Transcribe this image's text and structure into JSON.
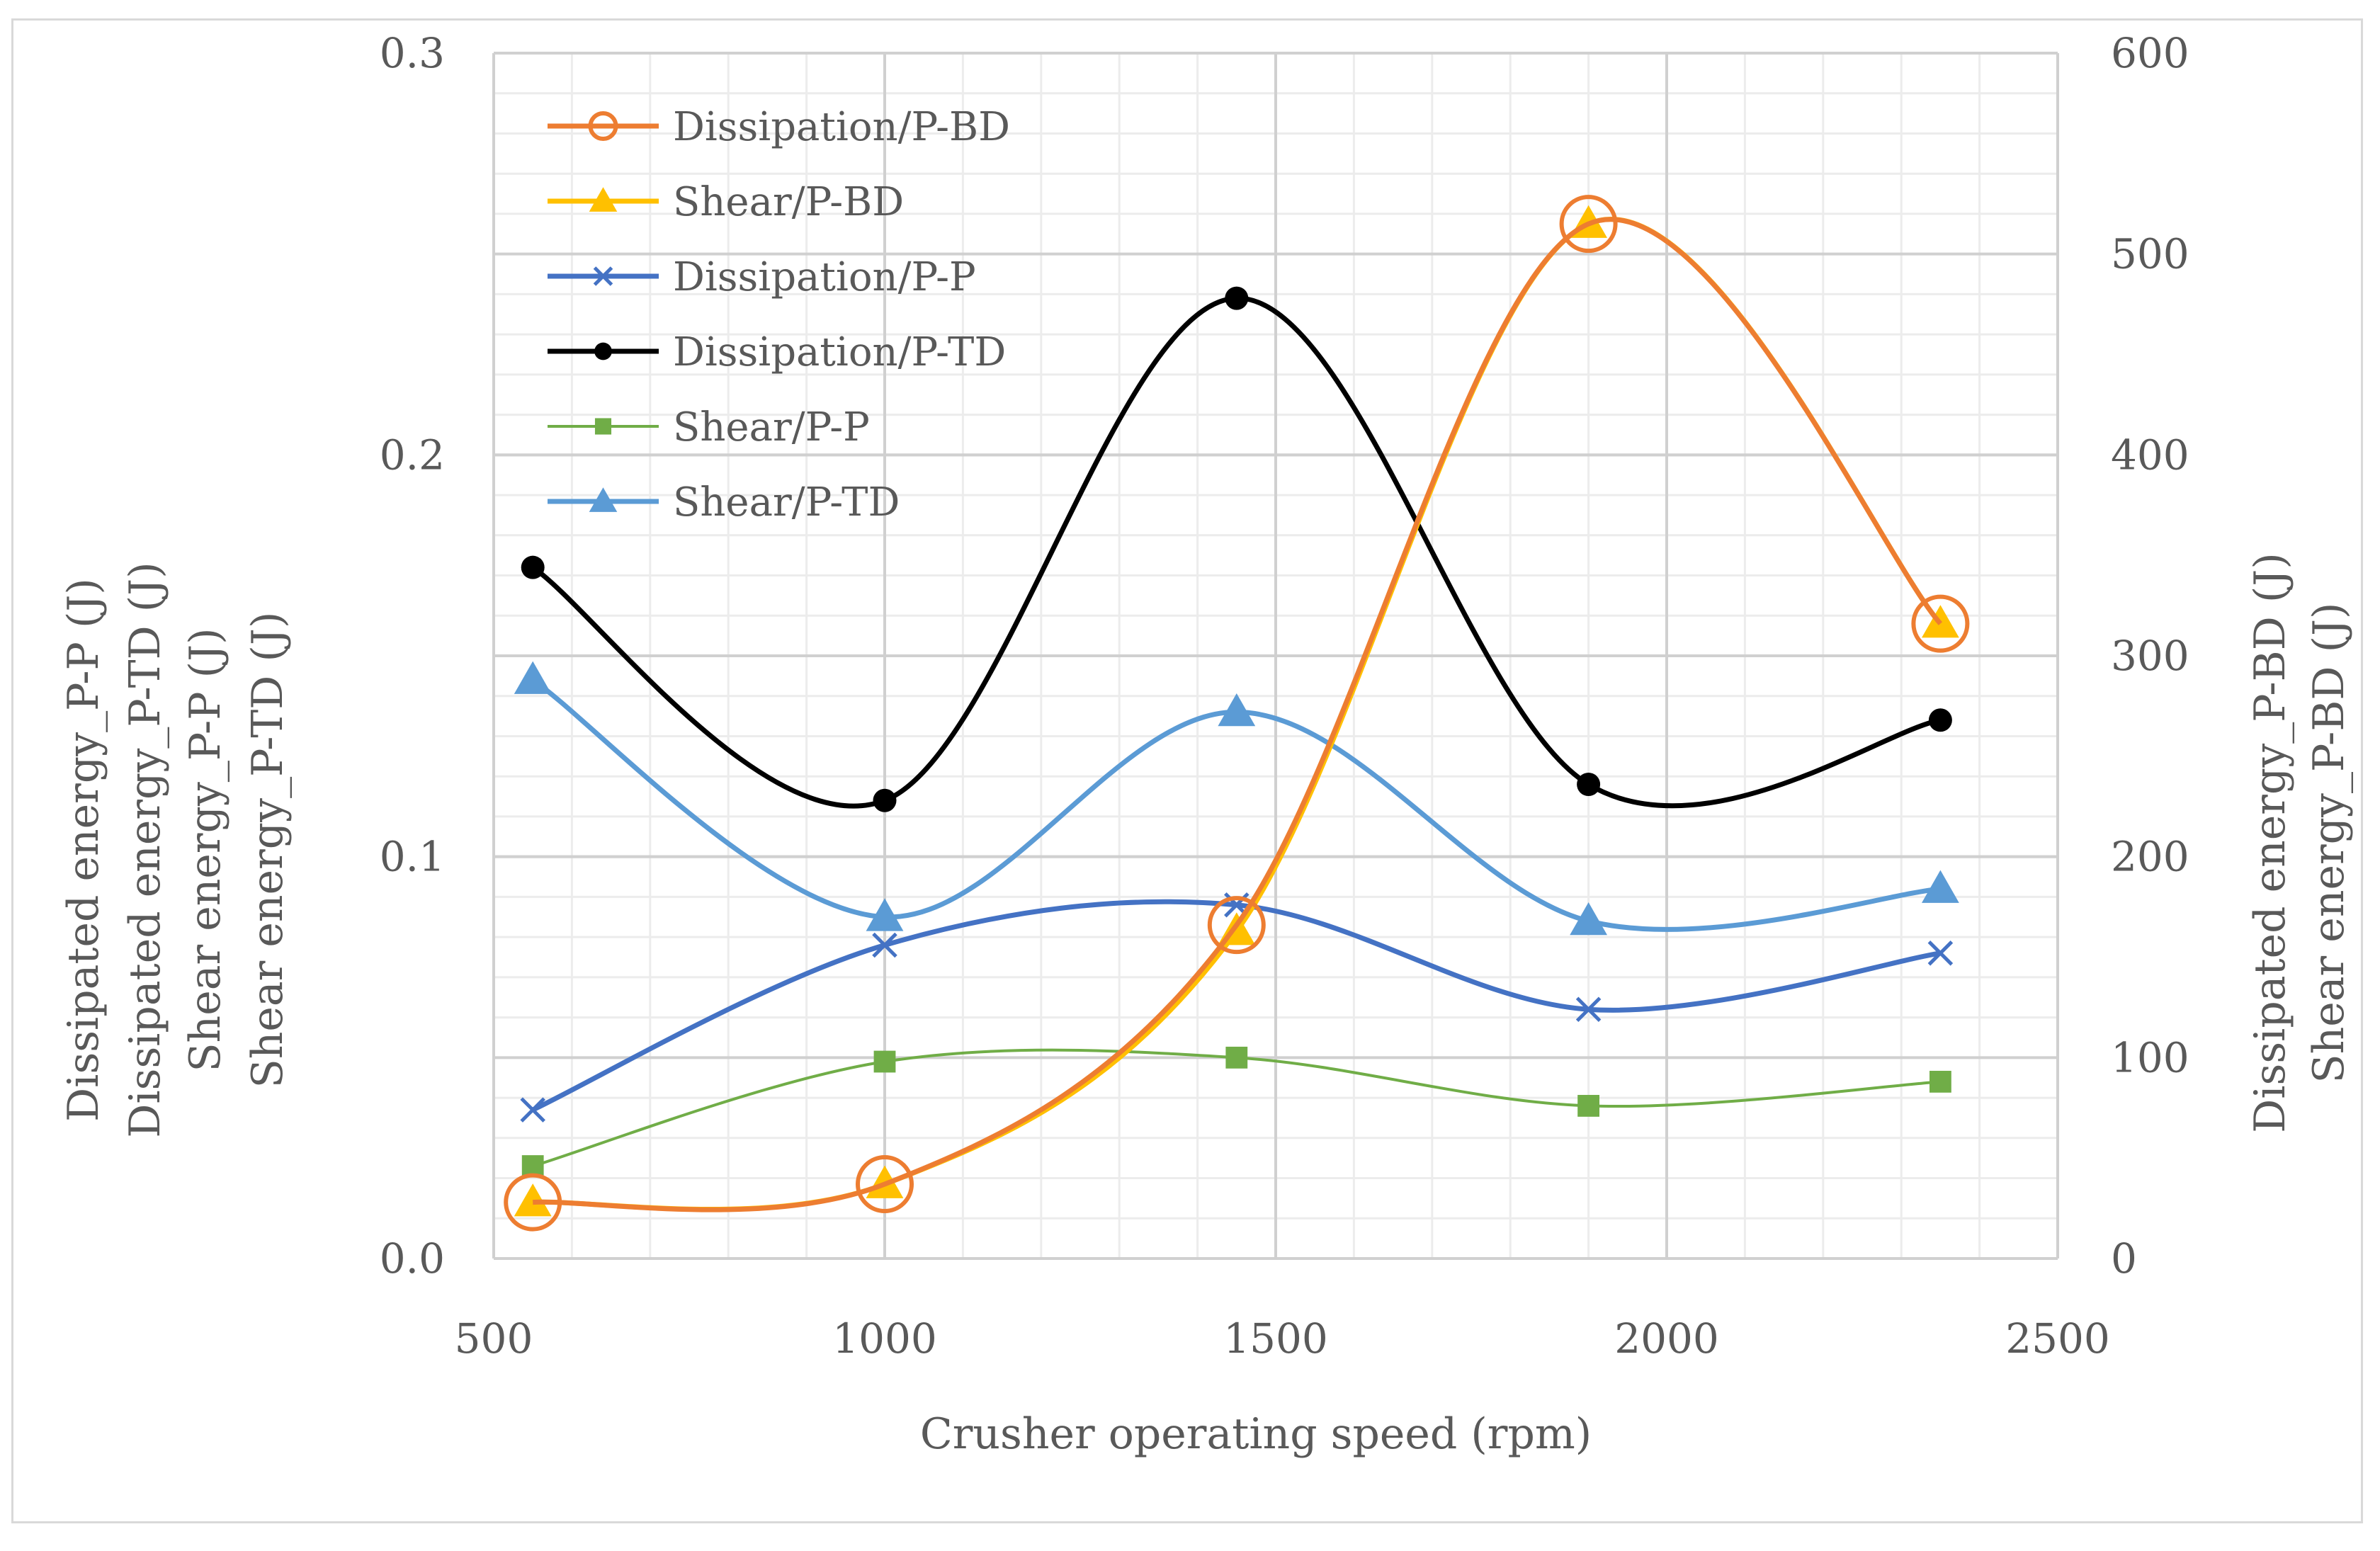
{
  "chart_data": {
    "type": "line",
    "xlabel": "Crusher operating speed (rpm)",
    "xlim": [
      500,
      2500
    ],
    "x_ticks": [
      "500",
      "1000",
      "1500",
      "2000",
      "2500"
    ],
    "ylim_left": [
      0,
      0.3
    ],
    "y_ticks_left": [
      "0.0",
      "0.1",
      "0.2",
      "0.3"
    ],
    "ylim_right": [
      0,
      600
    ],
    "y_ticks_right": [
      "0",
      "100",
      "200",
      "300",
      "400",
      "500",
      "600"
    ],
    "ylabel_left": [
      "Dissipated energy_P-P (J)",
      "Dissipated energy_P-TD (J)",
      "Shear energy_P-P (J)",
      "Shear energy_P-TD (J)"
    ],
    "ylabel_right": [
      "Dissipated energy_P-BD (J)",
      "Shear energy_P-BD (J)"
    ],
    "grid": true,
    "legend_position": "top-left",
    "series": [
      {
        "name": "Dissipation/P-BD",
        "axis": "right",
        "color": "#ed7d31",
        "marker": "open-circle",
        "width": 7,
        "x": [
          550,
          1000,
          1450,
          1900,
          2350
        ],
        "values": [
          28,
          37,
          166,
          515,
          316
        ]
      },
      {
        "name": "Shear/P-BD",
        "axis": "right",
        "color": "#ffc000",
        "marker": "triangle",
        "width": 7,
        "x": [
          550,
          1000,
          1450,
          1900,
          2350
        ],
        "values": [
          28,
          37,
          163,
          515,
          316
        ]
      },
      {
        "name": "Dissipation/P-P",
        "axis": "left",
        "color": "#4472c4",
        "marker": "x",
        "width": 7,
        "x": [
          550,
          1000,
          1450,
          1900,
          2350
        ],
        "values": [
          0.037,
          0.078,
          0.088,
          0.062,
          0.076
        ]
      },
      {
        "name": "Dissipation/P-TD",
        "axis": "left",
        "color": "#000000",
        "marker": "filled-circle",
        "width": 7,
        "x": [
          550,
          1000,
          1450,
          1900,
          2350
        ],
        "values": [
          0.172,
          0.114,
          0.239,
          0.118,
          0.134
        ]
      },
      {
        "name": "Shear/P-P",
        "axis": "left",
        "color": "#70ad47",
        "marker": "square",
        "width": 4,
        "x": [
          550,
          1000,
          1450,
          1900,
          2350
        ],
        "values": [
          0.023,
          0.049,
          0.05,
          0.038,
          0.044
        ]
      },
      {
        "name": "Shear/P-TD",
        "axis": "left",
        "color": "#5b9bd5",
        "marker": "triangle",
        "width": 7,
        "x": [
          550,
          1000,
          1450,
          1900,
          2350
        ],
        "values": [
          0.144,
          0.085,
          0.136,
          0.084,
          0.092
        ]
      }
    ]
  }
}
